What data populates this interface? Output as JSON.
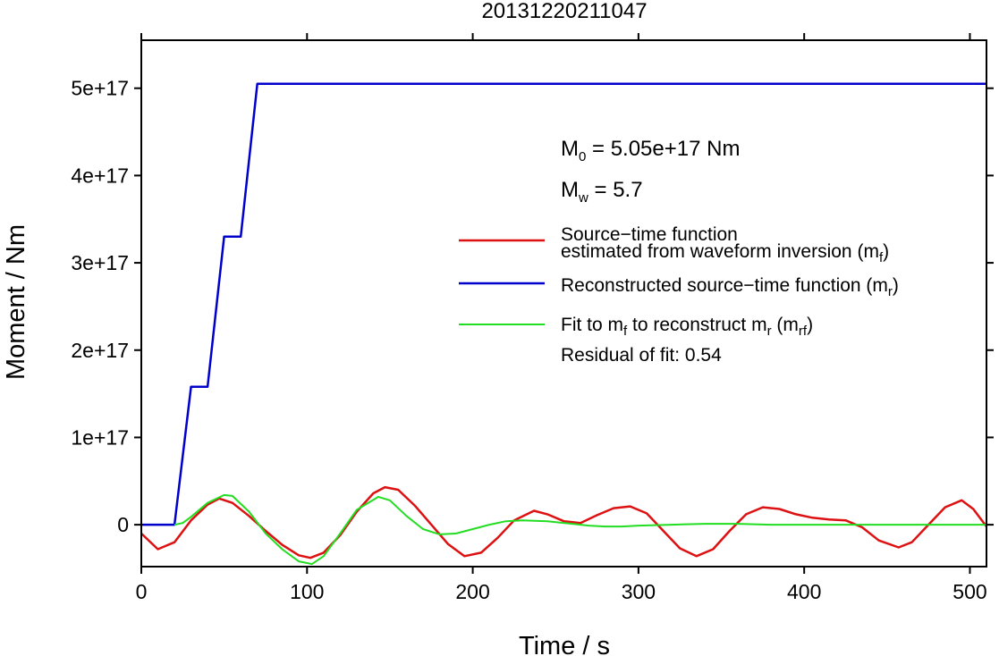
{
  "chart_data": {
    "type": "line",
    "title": "20131220211047",
    "xlabel": "Time / s",
    "ylabel": "Moment / Nm",
    "xlim": [
      0,
      510
    ],
    "ylim": [
      -4.8e+16,
      5.55e+17
    ],
    "xticks": [
      0,
      100,
      200,
      300,
      400,
      500
    ],
    "xtick_labels": [
      "0",
      "100",
      "200",
      "300",
      "400",
      "500"
    ],
    "yticks": [
      0,
      1e+17,
      2e+17,
      3e+17,
      4e+17,
      5e+17
    ],
    "ytick_labels": [
      "0",
      "1e+17",
      "2e+17",
      "3e+17",
      "4e+17",
      "5e+17"
    ],
    "grid": false,
    "legend_position": "right",
    "annotations": {
      "m0_symbol": "M",
      "m0_sub": "0",
      "m0_text": " = 5.05e+17 Nm",
      "mw_symbol": "M",
      "mw_sub": "w",
      "mw_text": " = 5.7",
      "residual": "Residual of fit: 0.54"
    },
    "legend": {
      "red_line1": "Source−time function",
      "red_line2a": "estimated from waveform inversion (m",
      "red_sub": "f",
      "red_close": ")",
      "blue_a": "Reconstructed source−time function (m",
      "blue_sub": "r",
      "blue_close": ")",
      "green_a": "Fit to m",
      "green_sub1": "f",
      "green_b": " to reconstruct m",
      "green_sub2": "r",
      "green_c": " (m",
      "green_sub3": "rf",
      "green_close": ")"
    },
    "series": [
      {
        "color": "#dd1111",
        "x": [
          0,
          10,
          20,
          30,
          40,
          47,
          55,
          65,
          75,
          85,
          95,
          102,
          110,
          120,
          130,
          140,
          147,
          155,
          165,
          175,
          185,
          195,
          205,
          215,
          225,
          237,
          245,
          255,
          265,
          275,
          285,
          295,
          305,
          315,
          325,
          335,
          345,
          355,
          365,
          375,
          385,
          395,
          405,
          415,
          425,
          435,
          445,
          457,
          465,
          475,
          485,
          495,
          502,
          510
        ],
        "y": [
          -1e+16,
          -2.8e+16,
          -2e+16,
          5000000000000000.0,
          2.3e+16,
          3e+16,
          2.5e+16,
          1e+16,
          -7000000000000000.0,
          -2.3e+16,
          -3.5e+16,
          -3.8e+16,
          -3.2e+16,
          -1.2e+16,
          1.5e+16,
          3.6e+16,
          4.3e+16,
          4e+16,
          2.2e+16,
          0,
          -2.2e+16,
          -3.6e+16,
          -3.2e+16,
          -1.5e+16,
          5000000000000000.0,
          1.6e+16,
          1.2e+16,
          4000000000000000.0,
          2000000000000000.0,
          1.1e+16,
          1.9e+16,
          2.1e+16,
          1.3e+16,
          -7000000000000000.0,
          -2.7e+16,
          -3.6e+16,
          -2.8e+16,
          -7000000000000000.0,
          1.2e+16,
          2e+16,
          1.8e+16,
          1.2e+16,
          8000000000000000.0,
          6000000000000000.0,
          5000000000000000.0,
          -3000000000000000.0,
          -1.8e+16,
          -2.6e+16,
          -2e+16,
          0,
          2e+16,
          2.8e+16,
          1.8e+16,
          -2000000000000000.0
        ]
      },
      {
        "color": "#0000cc",
        "x": [
          0,
          20,
          30,
          40,
          50,
          60,
          70,
          510
        ],
        "y": [
          0,
          0,
          1.58e+17,
          1.58e+17,
          3.3e+17,
          3.3e+17,
          5.05e+17,
          5.05e+17
        ]
      },
      {
        "color": "#22dd22",
        "x": [
          20,
          25,
          30,
          40,
          50,
          55,
          65,
          75,
          85,
          95,
          103,
          110,
          120,
          130,
          143,
          150,
          160,
          170,
          180,
          190,
          200,
          210,
          220,
          230,
          245,
          260,
          270,
          280,
          290,
          300,
          320,
          340,
          360,
          380,
          400,
          450,
          510
        ],
        "y": [
          0,
          2000000000000000.0,
          9000000000000000.0,
          2.5e+16,
          3.4e+16,
          3.3e+16,
          1.5e+16,
          -1e+16,
          -2.8e+16,
          -4.2e+16,
          -4.5e+16,
          -3.6e+16,
          -1e+16,
          1.7e+16,
          3.2e+16,
          2.8e+16,
          1e+16,
          -5000000000000000.0,
          -1.1e+16,
          -1e+16,
          -5000000000000000.0,
          0,
          4000000000000000.0,
          5000000000000000.0,
          4000000000000000.0,
          1000000000000000.0,
          -1000000000000000.0,
          -2000000000000000.0,
          -2000000000000000.0,
          -1000000000000000.0,
          0,
          1000000000000000.0,
          1000000000000000.0,
          0,
          0,
          0,
          0
        ]
      }
    ]
  }
}
